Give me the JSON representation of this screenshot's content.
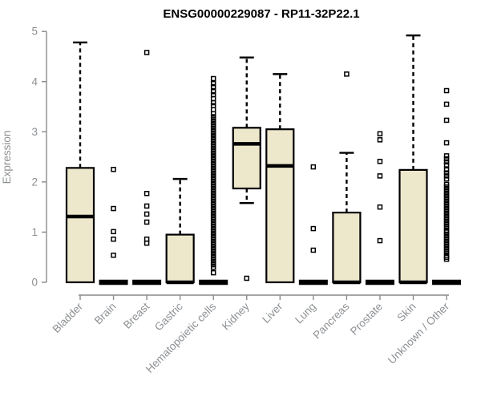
{
  "chart_data": {
    "type": "box",
    "title": "ENSG00000229087 - RP11-32P22.1",
    "xlabel": "",
    "ylabel": "Expression",
    "ylim": [
      0,
      5
    ],
    "yticks": [
      0,
      1,
      2,
      3,
      4,
      5
    ],
    "legend": "none",
    "grid": false,
    "categories": [
      "Bladder",
      "Brain",
      "Breast",
      "Gastric",
      "Hematopoietic cells",
      "Kidney",
      "Liver",
      "Lung",
      "Pancreas",
      "Prostate",
      "Skin",
      "Unknown / Other"
    ],
    "series": [
      {
        "category": "Bladder",
        "q1": 0,
        "median": 1.31,
        "q3": 2.28,
        "whisker_low": 0,
        "whisker_high": 4.78,
        "outliers": []
      },
      {
        "category": "Brain",
        "q1": 0,
        "median": 0,
        "q3": 0,
        "whisker_low": 0,
        "whisker_high": 0,
        "outliers": [
          2.25,
          1.47,
          1.01,
          0.86,
          0.54
        ]
      },
      {
        "category": "Breast",
        "q1": 0,
        "median": 0,
        "q3": 0,
        "whisker_low": 0,
        "whisker_high": 0,
        "outliers": [
          4.58,
          1.77,
          1.52,
          1.36,
          1.2,
          0.86,
          0.78
        ]
      },
      {
        "category": "Gastric",
        "q1": 0,
        "median": 0,
        "q3": 0.95,
        "whisker_low": 0,
        "whisker_high": 2.06,
        "outliers": []
      },
      {
        "category": "Hematopoietic cells",
        "q1": 0,
        "median": 0,
        "q3": 0,
        "whisker_low": 0,
        "whisker_high": 0,
        "outliers": [
          4.06,
          3.96,
          3.9,
          3.8,
          3.74,
          3.66,
          3.58,
          3.52,
          3.44,
          3.36,
          3.3,
          3.25,
          3.2,
          3.15,
          3.1,
          3.05,
          3.0,
          2.95,
          2.9,
          2.85,
          2.8,
          2.75,
          2.7,
          2.65,
          2.6,
          2.55,
          2.5,
          2.45,
          2.4,
          2.35,
          2.3,
          2.25,
          2.2,
          2.15,
          2.1,
          2.05,
          2.0,
          1.95,
          1.9,
          1.85,
          1.8,
          1.75,
          1.7,
          1.65,
          1.6,
          1.55,
          1.5,
          1.45,
          1.4,
          1.35,
          1.3,
          1.25,
          1.2,
          1.15,
          1.1,
          1.05,
          1.0,
          0.95,
          0.9,
          0.85,
          0.8,
          0.75,
          0.7,
          0.65,
          0.6,
          0.55,
          0.5,
          0.45,
          0.4,
          0.35,
          0.3,
          0.19
        ]
      },
      {
        "category": "Kidney",
        "q1": 1.87,
        "median": 2.76,
        "q3": 3.08,
        "whisker_low": 1.58,
        "whisker_high": 4.48,
        "outliers": [
          0.08
        ]
      },
      {
        "category": "Liver",
        "q1": 0,
        "median": 2.32,
        "q3": 3.05,
        "whisker_low": 0,
        "whisker_high": 4.15,
        "outliers": []
      },
      {
        "category": "Lung",
        "q1": 0,
        "median": 0,
        "q3": 0,
        "whisker_low": 0,
        "whisker_high": 0,
        "outliers": [
          2.3,
          1.07,
          0.64
        ]
      },
      {
        "category": "Pancreas",
        "q1": 0,
        "median": 0,
        "q3": 1.39,
        "whisker_low": 0,
        "whisker_high": 2.58,
        "outliers": [
          4.15
        ]
      },
      {
        "category": "Prostate",
        "q1": 0,
        "median": 0,
        "q3": 0,
        "whisker_low": 0,
        "whisker_high": 0,
        "outliers": [
          2.96,
          2.84,
          2.41,
          2.12,
          1.5,
          0.83
        ]
      },
      {
        "category": "Skin",
        "q1": 0,
        "median": 0,
        "q3": 2.24,
        "whisker_low": 0,
        "whisker_high": 4.92,
        "outliers": []
      },
      {
        "category": "Unknown / Other",
        "q1": 0,
        "median": 0,
        "q3": 0,
        "whisker_low": 0,
        "whisker_high": 0,
        "outliers": [
          3.82,
          3.55,
          3.23,
          2.78,
          2.52,
          2.46,
          2.4,
          2.34,
          2.24,
          2.18,
          2.12,
          2.06,
          1.95,
          1.9,
          1.85,
          1.8,
          1.75,
          1.7,
          1.65,
          1.6,
          1.55,
          1.5,
          1.45,
          1.4,
          1.35,
          1.3,
          1.25,
          1.2,
          1.15,
          1.1,
          1.04,
          1.0,
          0.95,
          0.9,
          0.85,
          0.8,
          0.75,
          0.7,
          0.65,
          0.6,
          0.54,
          0.5,
          0.46
        ]
      }
    ],
    "colors": {
      "box_fill": "#EDE7CC",
      "box_border": "#000000",
      "median": "#000000",
      "whisker": "#000000",
      "outlier": "#000000",
      "axis_line": "#8a8a8a",
      "text_gray": "#8d9093",
      "title": "#000000",
      "background": "#ffffff"
    }
  }
}
